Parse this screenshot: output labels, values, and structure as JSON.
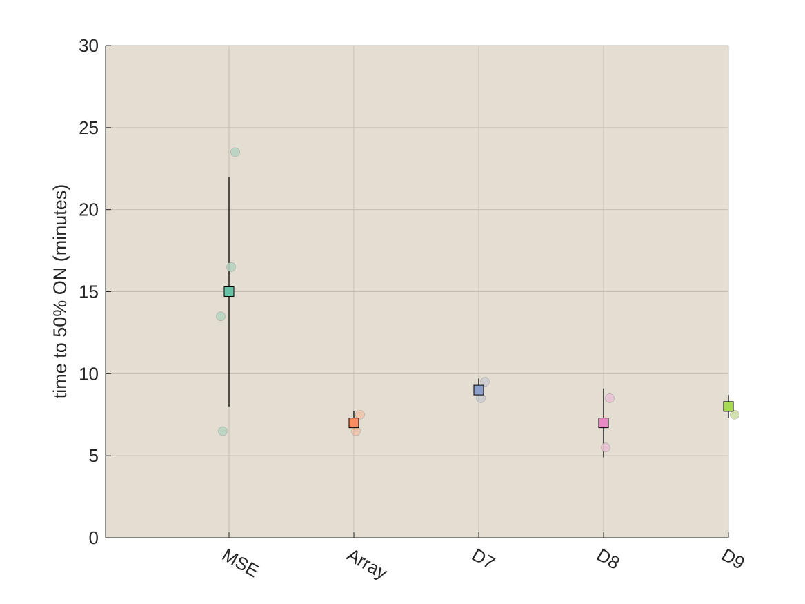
{
  "chart_data": {
    "type": "scatter",
    "title": "",
    "xlabel": "",
    "ylabel": "time to 50% ON (minutes)",
    "categories": [
      "MSE",
      "Array",
      "D7",
      "D8",
      "D9"
    ],
    "ylim": [
      0,
      30
    ],
    "yticks": [
      0,
      5,
      10,
      15,
      20,
      25,
      30
    ],
    "grid": true,
    "background_color": "#e3ddd2",
    "summary": [
      {
        "category": "MSE",
        "mean": 15.0,
        "err_low": 8.0,
        "err_high": 22.0,
        "color": "#66c2a5"
      },
      {
        "category": "Array",
        "mean": 7.0,
        "err_low": 6.3,
        "err_high": 7.7,
        "color": "#fc8d62"
      },
      {
        "category": "D7",
        "mean": 9.0,
        "err_low": 8.3,
        "err_high": 9.7,
        "color": "#8da0cb"
      },
      {
        "category": "D8",
        "mean": 7.0,
        "err_low": 4.9,
        "err_high": 9.1,
        "color": "#e78ac3"
      },
      {
        "category": "D9",
        "mean": 8.0,
        "err_low": 7.3,
        "err_high": 8.7,
        "color": "#a6d854"
      }
    ],
    "points": [
      {
        "category": "MSE",
        "values": [
          23.5,
          16.5,
          13.5,
          6.5
        ],
        "color": "#b7d4c0"
      },
      {
        "category": "Array",
        "values": [
          7.5,
          6.5
        ],
        "color": "#f0c3aa"
      },
      {
        "category": "D7",
        "values": [
          9.5,
          8.5
        ],
        "color": "#cbcccf"
      },
      {
        "category": "D8",
        "values": [
          8.5,
          5.5
        ],
        "color": "#e8c0d0"
      },
      {
        "category": "D9",
        "values": [
          7.5
        ],
        "color": "#cfdfa6"
      }
    ]
  }
}
